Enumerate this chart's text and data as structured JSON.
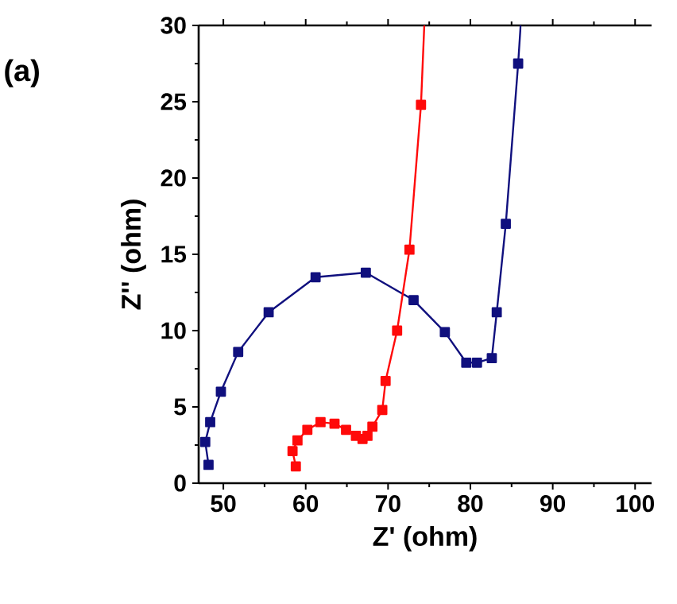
{
  "chart_data": {
    "type": "line",
    "xlabel": "Z' (ohm)",
    "ylabel": "Z'' (ohm)",
    "annotations": [
      "(a)"
    ],
    "xlim": [
      47,
      102
    ],
    "ylim": [
      0,
      30
    ],
    "xticks": [
      50,
      60,
      70,
      80,
      90,
      100
    ],
    "yticks": [
      0,
      5,
      10,
      15,
      20,
      25,
      30
    ],
    "marker": "square",
    "series": [
      {
        "color": "#10107e",
        "x": [
          48.2,
          47.8,
          48.4,
          49.7,
          51.8,
          55.5,
          61.2,
          67.3,
          73.1,
          76.9,
          79.5,
          80.8,
          82.6,
          83.2,
          84.3,
          85.8,
          86.1
        ],
        "values": [
          1.2,
          2.7,
          4.0,
          6.0,
          8.6,
          11.2,
          13.5,
          13.8,
          12.0,
          9.9,
          7.9,
          7.9,
          8.2,
          11.2,
          17.0,
          27.5,
          30
        ]
      },
      {
        "color": "#ff0a0a",
        "x": [
          58.8,
          58.4,
          59.0,
          60.2,
          61.8,
          63.5,
          64.9,
          66.1,
          66.9,
          67.5,
          68.1,
          69.3,
          69.7,
          71.1,
          72.6,
          74.0,
          74.4
        ],
        "values": [
          1.1,
          2.1,
          2.8,
          3.5,
          4.0,
          3.9,
          3.5,
          3.1,
          2.9,
          3.1,
          3.7,
          4.8,
          6.7,
          10.0,
          15.3,
          24.8,
          30
        ]
      }
    ]
  }
}
